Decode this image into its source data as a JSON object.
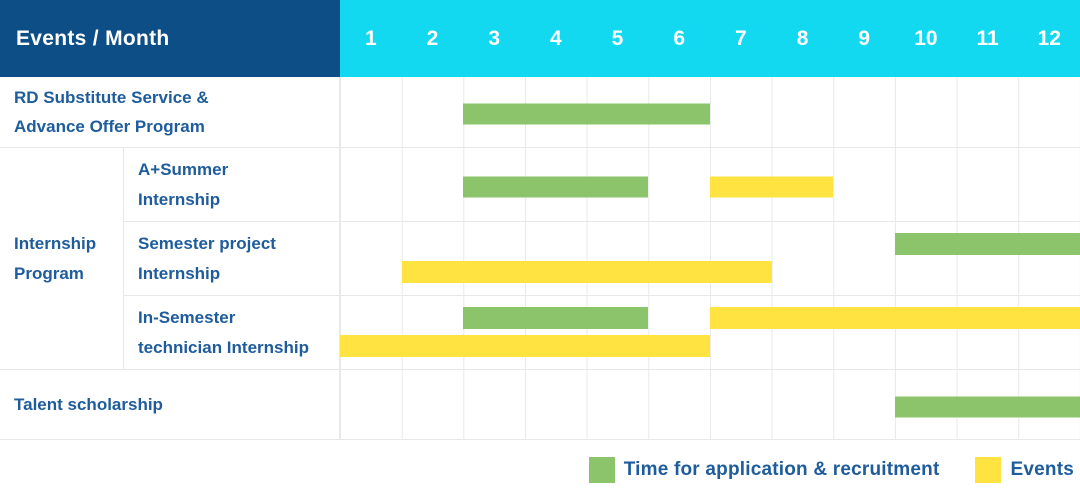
{
  "header": {
    "title": "Events / Month",
    "months": [
      "1",
      "2",
      "3",
      "4",
      "5",
      "6",
      "7",
      "8",
      "9",
      "10",
      "11",
      "12"
    ]
  },
  "colors": {
    "header_bg": "#0E4E87",
    "months_bg": "#12D8F0",
    "label_text": "#1E5C9C",
    "application_green": "#8BC46A",
    "events_yellow": "#FFE340",
    "grid_line": "#E9E9E9"
  },
  "rows": {
    "rd_substitute": {
      "label": "RD Substitute Service &\nAdvance Offer Program"
    },
    "internship_group": {
      "label": "Internship\nProgram"
    },
    "a_summer": {
      "label": "A+Summer\nInternship"
    },
    "semester_project": {
      "label": "Semester project\nInternship"
    },
    "in_semester": {
      "label": "In-Semester\ntechnician Internship"
    },
    "talent": {
      "label": "Talent scholarship"
    }
  },
  "chart_data": {
    "type": "gantt",
    "x_unit": "month",
    "x_ticks": [
      1,
      2,
      3,
      4,
      5,
      6,
      7,
      8,
      9,
      10,
      11,
      12
    ],
    "x_range": [
      1,
      12
    ],
    "legend_position": "bottom-right",
    "grid": true,
    "bars": [
      {
        "row": "rd_substitute",
        "kind": "application",
        "start_month": 3,
        "end_month": 6,
        "band": "single"
      },
      {
        "row": "a_summer",
        "kind": "application",
        "start_month": 3,
        "end_month": 5,
        "band": "single"
      },
      {
        "row": "a_summer",
        "kind": "events",
        "start_month": 7,
        "end_month": 8,
        "band": "single"
      },
      {
        "row": "semester_project",
        "kind": "application",
        "start_month": 10,
        "end_month": 12,
        "band": "upper"
      },
      {
        "row": "semester_project",
        "kind": "events",
        "start_month": 2,
        "end_month": 7,
        "band": "lower"
      },
      {
        "row": "in_semester",
        "kind": "application",
        "start_month": 3,
        "end_month": 5,
        "band": "upper"
      },
      {
        "row": "in_semester",
        "kind": "events",
        "start_month": 7,
        "end_month": 12,
        "band": "upper"
      },
      {
        "row": "in_semester",
        "kind": "events",
        "start_month": 1,
        "end_month": 6,
        "band": "lower"
      },
      {
        "row": "talent",
        "kind": "application",
        "start_month": 10,
        "end_month": 12,
        "band": "single"
      }
    ]
  },
  "legend": [
    {
      "kind": "application",
      "label": "Time for application & recruitment"
    },
    {
      "kind": "events",
      "label": "Events"
    }
  ]
}
